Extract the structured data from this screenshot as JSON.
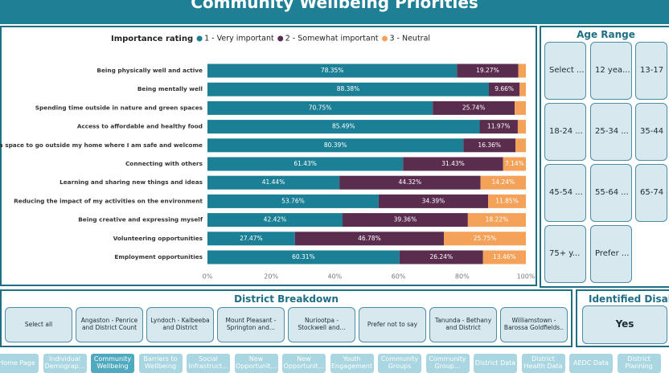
{
  "header": {
    "title": "Community Wellbeing Priorities"
  },
  "chart_data": {
    "type": "stacked-bar",
    "orientation": "horizontal",
    "legend_title": "Importance rating",
    "categories": [
      "Being physically well and active",
      "Being mentally well",
      "Spending time outside in nature and green spaces",
      "Access to affordable and healthy food",
      "Having a space to go outside my home where I am safe and welcome",
      "Connecting with others",
      "Learning and sharing new things and ideas",
      "Reducing the impact of my activities on the environment",
      "Being creative and expressing myself",
      "Volunteering opportunities",
      "Employment opportunities"
    ],
    "series": [
      {
        "name": "1 - Very important",
        "color": "#1b7f95",
        "values": [
          78.35,
          88.38,
          70.75,
          85.49,
          80.39,
          61.43,
          41.44,
          53.76,
          42.42,
          27.47,
          60.31
        ],
        "value_labels": [
          "78.35%",
          "88.38%",
          "70.75%",
          "85.49%",
          "80.39%",
          "61.43%",
          "41.44%",
          "53.76%",
          "42.42%",
          "27.47%",
          "60.31%"
        ]
      },
      {
        "name": "2 - Somewhat important",
        "color": "#5a2d4f",
        "values": [
          19.27,
          9.66,
          25.74,
          11.97,
          16.36,
          31.43,
          44.32,
          34.39,
          39.36,
          46.78,
          26.24
        ],
        "value_labels": [
          "19.27%",
          "9.66%",
          "25.74%",
          "11.97%",
          "16.36%",
          "31.43%",
          "44.32%",
          "34.39%",
          "39.36%",
          "46.78%",
          "26.24%"
        ]
      },
      {
        "name": "3 - Neutral",
        "color": "#f4a259",
        "values": [
          2.38,
          1.96,
          3.51,
          2.54,
          3.25,
          7.14,
          14.24,
          11.85,
          18.22,
          25.75,
          13.46
        ],
        "value_labels": [
          null,
          null,
          null,
          null,
          null,
          "7.14%",
          "14.24%",
          "11.85%",
          "18.22%",
          "25.75%",
          "13.46%"
        ]
      }
    ],
    "xlim": [
      0,
      100
    ],
    "xticks": [
      {
        "value": 0,
        "label": "0%"
      },
      {
        "value": 20,
        "label": "20%"
      },
      {
        "value": 40,
        "label": "40%"
      },
      {
        "value": 60,
        "label": "60%"
      },
      {
        "value": 80,
        "label": "80%"
      },
      {
        "value": 100,
        "label": "100%"
      }
    ],
    "grid": false
  },
  "age_range": {
    "title": "Age Range",
    "options": [
      "Select ...",
      "12 yea...",
      "13-17 ...",
      "18-24 ...",
      "25-34 ...",
      "35-44 ...",
      "45-54 ...",
      "55-64 ...",
      "65-74 ...",
      "75+ y...",
      "Prefer ..."
    ]
  },
  "district_breakdown": {
    "title": "District Breakdown",
    "options": [
      "Select all",
      "Angaston - Penrice and District Count",
      "Lyndoch - Kalbeeba and District",
      "Mount Pleasant - Springton and...",
      "Nuriootpa - Stockwell and...",
      "Prefer not to say",
      "Tanunda - Bethany and District",
      "Williamstown - Barossa Goldfields.."
    ]
  },
  "identified_disability": {
    "title": "Identified Disability",
    "options": [
      "Yes"
    ]
  },
  "navigation": {
    "tabs": [
      "Home Page",
      "Individual Demograp...",
      "Community Wellbeing",
      "Barriers to Wellbeing",
      "Social Infrastruct...",
      "New Opportunit...",
      "New Opportunit...",
      "Youth Engagement",
      "Community Groups",
      "Community Group...",
      "District Data",
      "District Health Data",
      "AEDC Data",
      "District Planning"
    ],
    "active_tab": 2
  }
}
